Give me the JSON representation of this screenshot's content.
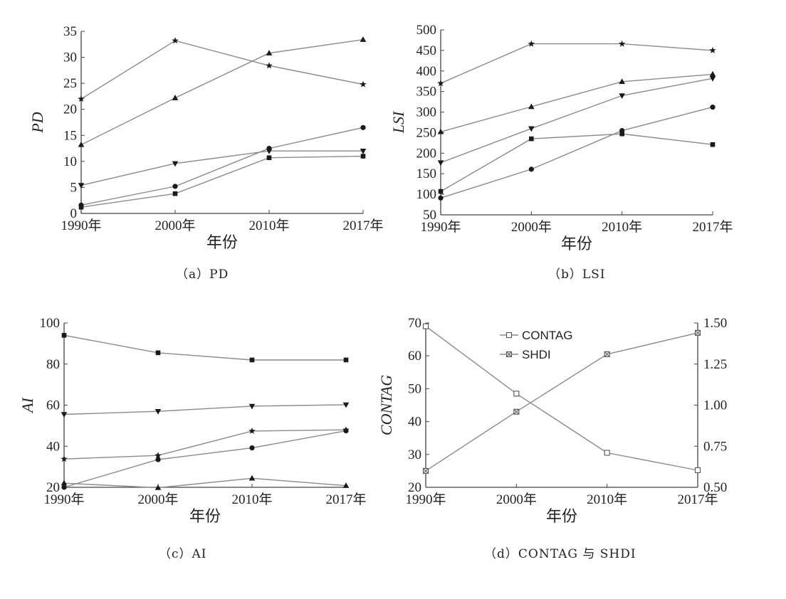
{
  "chart_data": [
    {
      "id": "a",
      "type": "line",
      "caption": "（a）PD",
      "categories": [
        "1990年",
        "2000年",
        "2010年",
        "2017年"
      ],
      "xlabel": "年份",
      "ylabel": "PD",
      "ylim": [
        0,
        35
      ],
      "yticks": [
        "0",
        "5",
        "10",
        "15",
        "20",
        "25",
        "30",
        "35"
      ],
      "series": [
        {
          "marker": "star",
          "values": [
            22,
            33.2,
            28.4,
            24.8
          ]
        },
        {
          "marker": "triangle-up",
          "values": [
            13.2,
            22.2,
            30.8,
            33.4
          ]
        },
        {
          "marker": "triangle-down",
          "values": [
            5.4,
            9.6,
            12,
            12
          ]
        },
        {
          "marker": "circle",
          "values": [
            1.6,
            5.2,
            12.5,
            16.5
          ]
        },
        {
          "marker": "square",
          "values": [
            1.2,
            3.8,
            10.7,
            11
          ]
        }
      ]
    },
    {
      "id": "b",
      "type": "line",
      "caption": "（b）LSI",
      "categories": [
        "1990年",
        "2000年",
        "2010年",
        "2017年"
      ],
      "xlabel": "年份",
      "ylabel": "LSI",
      "ylim": [
        50,
        500
      ],
      "yticks": [
        "50",
        "100",
        "150",
        "200",
        "250",
        "300",
        "350",
        "400",
        "450",
        "500"
      ],
      "series": [
        {
          "marker": "star",
          "values": [
            370,
            466,
            466,
            450
          ]
        },
        {
          "marker": "triangle-up",
          "values": [
            252,
            313,
            374,
            392
          ]
        },
        {
          "marker": "triangle-down",
          "values": [
            177,
            260,
            340,
            382
          ]
        },
        {
          "marker": "square",
          "values": [
            107,
            235,
            247,
            221
          ]
        },
        {
          "marker": "circle",
          "values": [
            91,
            161,
            255,
            312
          ]
        }
      ]
    },
    {
      "id": "c",
      "type": "line",
      "caption": "（c）AI",
      "categories": [
        "1990年",
        "2000年",
        "2010年",
        "2017年"
      ],
      "xlabel": "年份",
      "ylabel": "AI",
      "ylim": [
        20,
        100
      ],
      "yticks": [
        "20",
        "40",
        "60",
        "80",
        "100"
      ],
      "series": [
        {
          "marker": "square",
          "values": [
            94,
            85.5,
            82,
            82
          ]
        },
        {
          "marker": "triangle-down",
          "values": [
            55.5,
            57,
            59.5,
            60.2
          ]
        },
        {
          "marker": "star",
          "values": [
            33.8,
            35.5,
            47.4,
            48
          ]
        },
        {
          "marker": "circle",
          "values": [
            20,
            33.5,
            39.2,
            47.5
          ]
        },
        {
          "marker": "triangle-up",
          "values": [
            22,
            19.8,
            24.4,
            20.8
          ]
        }
      ]
    },
    {
      "id": "d",
      "type": "line",
      "caption": "（d）CONTAG 与 SHDI",
      "categories": [
        "1990年",
        "2000年",
        "2010年",
        "2017年"
      ],
      "xlabel": "年份",
      "ylabel": "CONTAG",
      "ylim": [
        20,
        70
      ],
      "yticks": [
        "20",
        "30",
        "40",
        "50",
        "60",
        "70"
      ],
      "y2lim": [
        0.5,
        1.5
      ],
      "y2ticks": [
        "0.50",
        "0.75",
        "1.00",
        "1.25",
        "1.50"
      ],
      "legend_position": "top-center",
      "series": [
        {
          "name": "CONTAG",
          "marker": "open-square",
          "axis": "left",
          "values": [
            69,
            48.5,
            30.5,
            25.2
          ]
        },
        {
          "name": "SHDI",
          "marker": "crossed-square",
          "axis": "right",
          "values": [
            0.6,
            0.96,
            1.31,
            1.44
          ]
        }
      ]
    }
  ]
}
